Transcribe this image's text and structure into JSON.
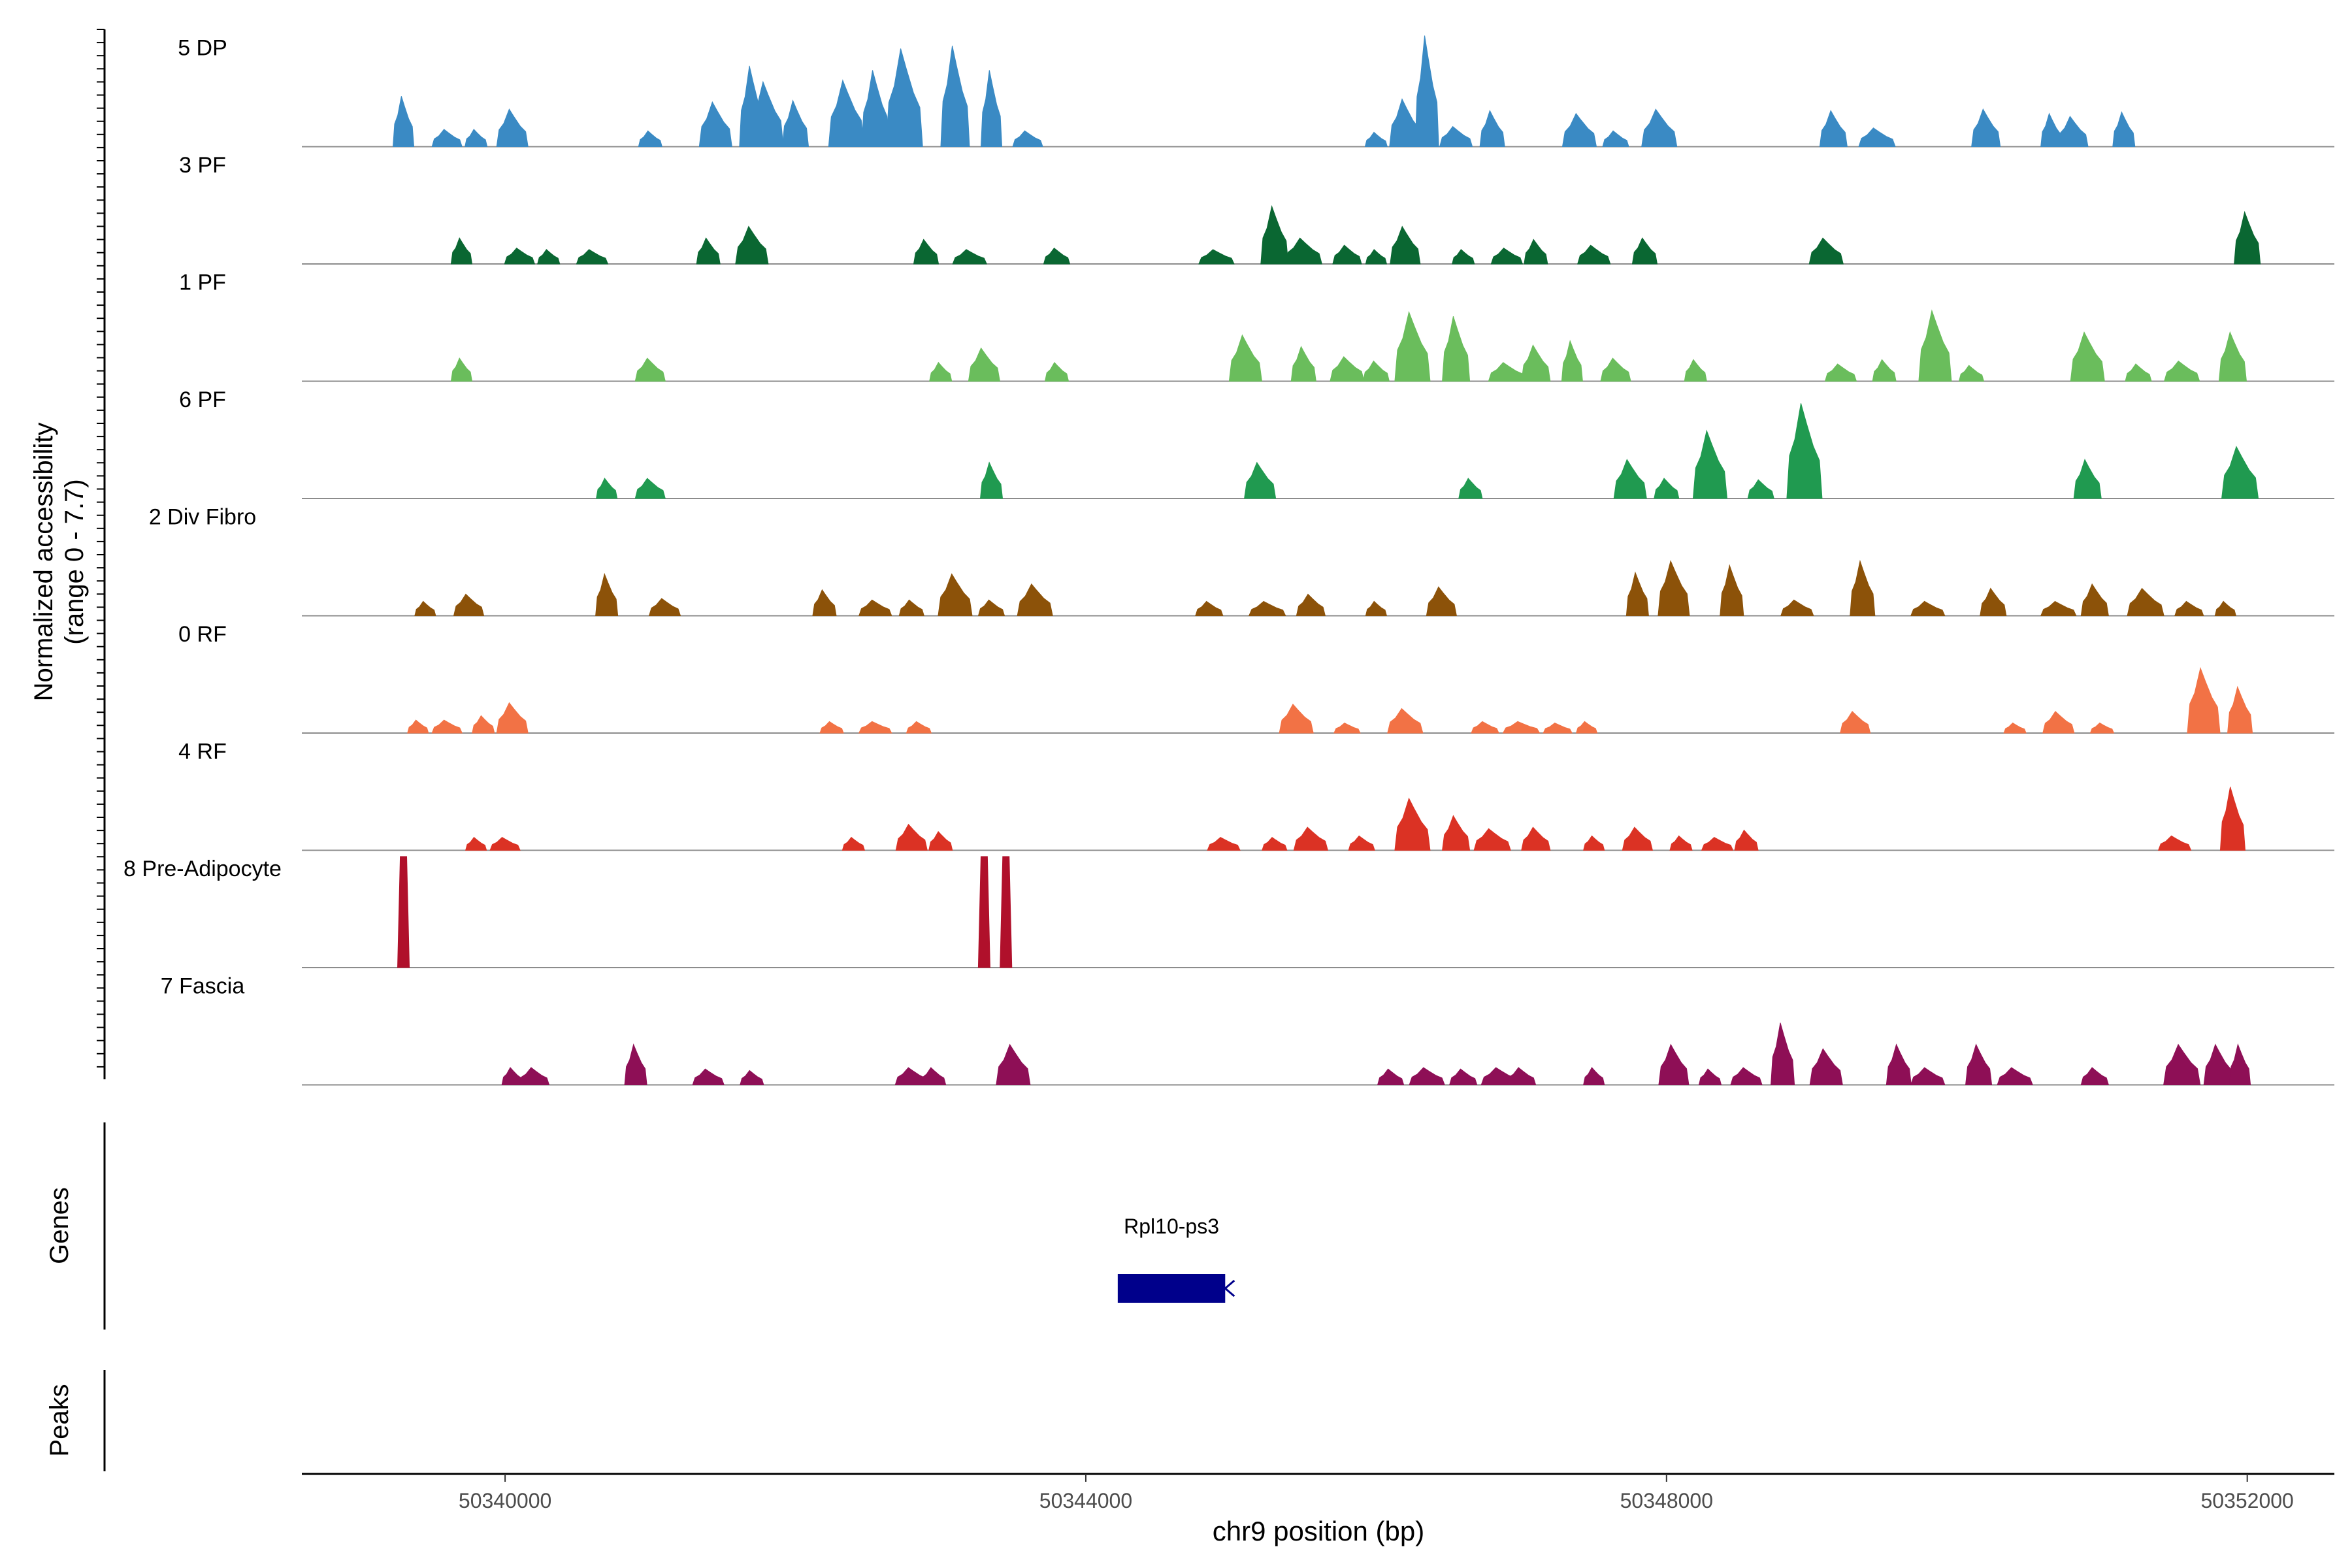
{
  "chart_data": {
    "type": "area",
    "title": "",
    "y_axis_label_line1": "Normalized accessibility",
    "y_axis_label_line2": "(range 0 - 7.7)",
    "y_range": [
      0,
      7.7
    ],
    "x_axis_label": "chr9 position (bp)",
    "x_range": [
      50338600,
      50352600
    ],
    "x_ticks": [
      50340000,
      50344000,
      50348000,
      50352000
    ],
    "x_tick_labels": [
      "50340000",
      "50344000",
      "50348000",
      "50352000"
    ],
    "tracks": [
      {
        "name": "5 DP",
        "color": "#3a8ac4",
        "peaks": [
          [
            50339300,
            3.5
          ],
          [
            50339600,
            1.2
          ],
          [
            50339800,
            1.2
          ],
          [
            50340050,
            2.6
          ],
          [
            50341000,
            1.1
          ],
          [
            50341450,
            3.1
          ],
          [
            50341700,
            5.6
          ],
          [
            50341800,
            4.5
          ],
          [
            50342000,
            3.2
          ],
          [
            50342350,
            4.6
          ],
          [
            50342550,
            5.3
          ],
          [
            50342750,
            6.8
          ],
          [
            50343100,
            7.0
          ],
          [
            50343350,
            5.3
          ],
          [
            50343600,
            1.1
          ],
          [
            50346000,
            1.0
          ],
          [
            50346200,
            3.3
          ],
          [
            50346350,
            7.7
          ],
          [
            50346550,
            1.4
          ],
          [
            50346800,
            2.5
          ],
          [
            50347400,
            2.3
          ],
          [
            50347650,
            1.1
          ],
          [
            50347950,
            2.6
          ],
          [
            50349150,
            2.5
          ],
          [
            50349450,
            1.3
          ],
          [
            50350200,
            2.6
          ],
          [
            50350650,
            2.3
          ],
          [
            50350800,
            2.1
          ],
          [
            50351150,
            2.4
          ]
        ]
      },
      {
        "name": "3 PF",
        "color": "#0a6732",
        "peaks": [
          [
            50339700,
            1.8
          ],
          [
            50340100,
            1.1
          ],
          [
            50340300,
            1.0
          ],
          [
            50340600,
            1.0
          ],
          [
            50341400,
            1.8
          ],
          [
            50341700,
            2.6
          ],
          [
            50342900,
            1.7
          ],
          [
            50343200,
            1.0
          ],
          [
            50343800,
            1.1
          ],
          [
            50344900,
            1.0
          ],
          [
            50345300,
            4.0
          ],
          [
            50345500,
            1.8
          ],
          [
            50345800,
            1.3
          ],
          [
            50346000,
            1.0
          ],
          [
            50346200,
            2.6
          ],
          [
            50346600,
            1.0
          ],
          [
            50346900,
            1.1
          ],
          [
            50347100,
            1.7
          ],
          [
            50347500,
            1.3
          ],
          [
            50347850,
            1.8
          ],
          [
            50349100,
            1.8
          ],
          [
            50352000,
            3.6
          ]
        ]
      },
      {
        "name": "1 PF",
        "color": "#6abd5c",
        "peaks": [
          [
            50339700,
            1.6
          ],
          [
            50341000,
            1.6
          ],
          [
            50343000,
            1.3
          ],
          [
            50343300,
            2.3
          ],
          [
            50343800,
            1.3
          ],
          [
            50345100,
            3.2
          ],
          [
            50345500,
            2.4
          ],
          [
            50345800,
            1.7
          ],
          [
            50346000,
            1.4
          ],
          [
            50346250,
            4.8
          ],
          [
            50346550,
            4.5
          ],
          [
            50346900,
            1.3
          ],
          [
            50347100,
            2.5
          ],
          [
            50347350,
            2.8
          ],
          [
            50347650,
            1.6
          ],
          [
            50348200,
            1.5
          ],
          [
            50349200,
            1.2
          ],
          [
            50349500,
            1.5
          ],
          [
            50349850,
            4.9
          ],
          [
            50350100,
            1.1
          ],
          [
            50350900,
            3.4
          ],
          [
            50351250,
            1.2
          ],
          [
            50351550,
            1.4
          ],
          [
            50351900,
            3.4
          ]
        ]
      },
      {
        "name": "6 PF",
        "color": "#209a50",
        "peaks": [
          [
            50340700,
            1.4
          ],
          [
            50341000,
            1.4
          ],
          [
            50343350,
            2.5
          ],
          [
            50345200,
            2.5
          ],
          [
            50346650,
            1.4
          ],
          [
            50347750,
            2.7
          ],
          [
            50348000,
            1.4
          ],
          [
            50348300,
            4.7
          ],
          [
            50348650,
            1.3
          ],
          [
            50348950,
            6.6
          ],
          [
            50350900,
            2.7
          ],
          [
            50351950,
            3.6
          ]
        ]
      },
      {
        "name": "2 Div Fibro",
        "color": "#8c5209",
        "peaks": [
          [
            50339450,
            1.0
          ],
          [
            50339750,
            1.5
          ],
          [
            50340700,
            2.9
          ],
          [
            50341100,
            1.2
          ],
          [
            50342200,
            1.8
          ],
          [
            50342550,
            1.1
          ],
          [
            50342800,
            1.1
          ],
          [
            50343100,
            2.9
          ],
          [
            50343350,
            1.1
          ],
          [
            50343650,
            2.2
          ],
          [
            50344850,
            1.0
          ],
          [
            50345250,
            1.0
          ],
          [
            50345550,
            1.5
          ],
          [
            50346000,
            1.0
          ],
          [
            50346450,
            2.0
          ],
          [
            50347800,
            3.0
          ],
          [
            50348050,
            3.8
          ],
          [
            50348450,
            3.5
          ],
          [
            50348900,
            1.1
          ],
          [
            50349350,
            3.8
          ],
          [
            50349800,
            1.0
          ],
          [
            50350250,
            1.9
          ],
          [
            50350700,
            1.0
          ],
          [
            50350950,
            2.2
          ],
          [
            50351300,
            1.9
          ],
          [
            50351600,
            1.0
          ],
          [
            50351850,
            1.0
          ]
        ]
      },
      {
        "name": "0 RF",
        "color": "#f27245",
        "peaks": [
          [
            50339400,
            0.9
          ],
          [
            50339600,
            0.9
          ],
          [
            50339850,
            1.2
          ],
          [
            50340050,
            2.1
          ],
          [
            50342250,
            0.8
          ],
          [
            50342550,
            0.8
          ],
          [
            50342850,
            0.8
          ],
          [
            50345450,
            2.0
          ],
          [
            50345800,
            0.7
          ],
          [
            50346200,
            1.7
          ],
          [
            50346750,
            0.8
          ],
          [
            50347000,
            0.8
          ],
          [
            50347250,
            0.7
          ],
          [
            50347450,
            0.8
          ],
          [
            50349300,
            1.5
          ],
          [
            50350400,
            0.7
          ],
          [
            50350700,
            1.5
          ],
          [
            50351000,
            0.7
          ],
          [
            50351700,
            4.5
          ],
          [
            50351950,
            3.2
          ]
        ]
      },
      {
        "name": "4 RF",
        "color": "#db3224",
        "peaks": [
          [
            50339800,
            0.9
          ],
          [
            50340000,
            0.9
          ],
          [
            50342400,
            0.9
          ],
          [
            50342800,
            1.8
          ],
          [
            50343000,
            1.3
          ],
          [
            50344950,
            0.9
          ],
          [
            50345300,
            0.9
          ],
          [
            50345550,
            1.6
          ],
          [
            50345900,
            1.0
          ],
          [
            50346250,
            3.6
          ],
          [
            50346550,
            2.4
          ],
          [
            50346800,
            1.5
          ],
          [
            50347100,
            1.6
          ],
          [
            50347500,
            1.0
          ],
          [
            50347800,
            1.6
          ],
          [
            50348100,
            1.0
          ],
          [
            50348350,
            0.9
          ],
          [
            50348550,
            1.4
          ],
          [
            50351500,
            1.0
          ],
          [
            50351900,
            4.4
          ]
        ]
      },
      {
        "name": "8 Pre-Adipocyte",
        "color": "#b0102b",
        "peaks": [
          [
            50339300,
            7.7
          ],
          [
            50343300,
            7.7
          ],
          [
            50343450,
            7.7
          ]
        ]
      },
      {
        "name": "7 Fascia",
        "color": "#8e0f56",
        "peaks": [
          [
            50340050,
            1.2
          ],
          [
            50340200,
            1.2
          ],
          [
            50340900,
            2.8
          ],
          [
            50341400,
            1.1
          ],
          [
            50341700,
            1.0
          ],
          [
            50342800,
            1.2
          ],
          [
            50342950,
            1.2
          ],
          [
            50343500,
            2.8
          ],
          [
            50346100,
            1.1
          ],
          [
            50346350,
            1.2
          ],
          [
            50346600,
            1.1
          ],
          [
            50346850,
            1.2
          ],
          [
            50347000,
            1.2
          ],
          [
            50347500,
            1.2
          ],
          [
            50348050,
            2.8
          ],
          [
            50348300,
            1.1
          ],
          [
            50348550,
            1.2
          ],
          [
            50348800,
            4.3
          ],
          [
            50349100,
            2.5
          ],
          [
            50349600,
            2.8
          ],
          [
            50349800,
            1.2
          ],
          [
            50350150,
            2.8
          ],
          [
            50350400,
            1.2
          ],
          [
            50350950,
            1.2
          ],
          [
            50351550,
            2.8
          ],
          [
            50351800,
            2.8
          ],
          [
            50351950,
            2.8
          ]
        ]
      }
    ],
    "genes": [
      {
        "name": "Rpl10-ps3",
        "start": 50344220,
        "end": 50344960,
        "strand": "-",
        "color": "#00008b"
      }
    ],
    "gene_panel_label": "Genes",
    "peaks_panel_label": "Peaks"
  }
}
